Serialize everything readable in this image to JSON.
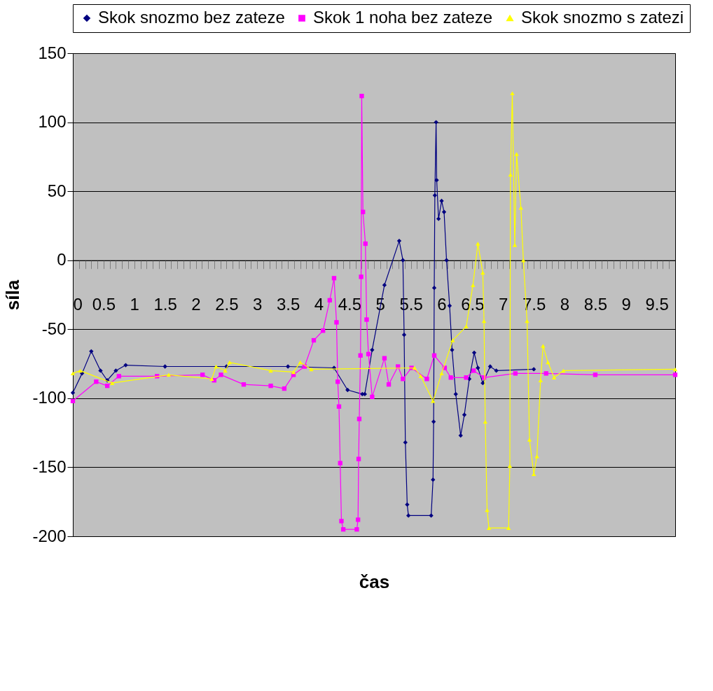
{
  "chart_data": {
    "type": "line",
    "xlabel": "čas",
    "ylabel": "síla",
    "legend": "top",
    "grid": "y",
    "xlim": [
      0,
      9.8
    ],
    "ylim": [
      -200,
      150
    ],
    "yticks": [
      -200,
      -150,
      -100,
      -50,
      0,
      50,
      100,
      150
    ],
    "xticks": [
      0,
      {
        "value": 0.1,
        "label": null
      },
      {
        "value": 0.2,
        "label": null
      },
      {
        "value": 0.3,
        "label": null
      },
      {
        "value": 0.4,
        "label": null
      },
      0.5,
      {
        "value": 0.6,
        "label": null
      },
      {
        "value": 0.7,
        "label": null
      },
      {
        "value": 0.8,
        "label": null
      },
      {
        "value": 0.9,
        "label": null
      },
      1,
      {
        "value": 1.1,
        "label": null
      },
      {
        "value": 1.2,
        "label": null
      },
      {
        "value": 1.3,
        "label": null
      },
      {
        "value": 1.4,
        "label": null
      },
      1.5,
      {
        "value": 1.6,
        "label": null
      },
      {
        "value": 1.7,
        "label": null
      },
      {
        "value": 1.8,
        "label": null
      },
      {
        "value": 1.9,
        "label": null
      },
      2,
      {
        "value": 2.1,
        "label": null
      },
      {
        "value": 2.2,
        "label": null
      },
      {
        "value": 2.3,
        "label": null
      },
      {
        "value": 2.4,
        "label": null
      },
      2.5,
      {
        "value": 2.6,
        "label": null
      },
      {
        "value": 2.7,
        "label": null
      },
      {
        "value": 2.8,
        "label": null
      },
      {
        "value": 2.9,
        "label": null
      },
      3,
      {
        "value": 3.1,
        "label": null
      },
      {
        "value": 3.2,
        "label": null
      },
      {
        "value": 3.3,
        "label": null
      },
      {
        "value": 3.4,
        "label": null
      },
      3.5,
      {
        "value": 3.6,
        "label": null
      },
      {
        "value": 3.7,
        "label": null
      },
      {
        "value": 3.8,
        "label": null
      },
      {
        "value": 3.9,
        "label": null
      },
      4,
      {
        "value": 4.1,
        "label": null
      },
      {
        "value": 4.2,
        "label": null
      },
      {
        "value": 4.3,
        "label": null
      },
      {
        "value": 4.4,
        "label": null
      },
      4.5,
      {
        "value": 4.6,
        "label": null
      },
      {
        "value": 4.7,
        "label": null
      },
      {
        "value": 4.8,
        "label": null
      },
      {
        "value": 4.9,
        "label": null
      },
      5,
      {
        "value": 5.1,
        "label": null
      },
      {
        "value": 5.2,
        "label": null
      },
      {
        "value": 5.3,
        "label": null
      },
      {
        "value": 5.4,
        "label": null
      },
      5.5,
      {
        "value": 5.6,
        "label": null
      },
      {
        "value": 5.7,
        "label": null
      },
      {
        "value": 5.8,
        "label": null
      },
      {
        "value": 5.9,
        "label": null
      },
      6,
      {
        "value": 6.1,
        "label": null
      },
      {
        "value": 6.2,
        "label": null
      },
      {
        "value": 6.3,
        "label": null
      },
      {
        "value": 6.4,
        "label": null
      },
      6.5,
      {
        "value": 6.6,
        "label": null
      },
      {
        "value": 6.7,
        "label": null
      },
      {
        "value": 6.8,
        "label": null
      },
      {
        "value": 6.9,
        "label": null
      },
      7,
      {
        "value": 7.1,
        "label": null
      },
      {
        "value": 7.2,
        "label": null
      },
      {
        "value": 7.3,
        "label": null
      },
      {
        "value": 7.4,
        "label": null
      },
      7.5,
      {
        "value": 7.6,
        "label": null
      },
      {
        "value": 7.7,
        "label": null
      },
      {
        "value": 7.8,
        "label": null
      },
      {
        "value": 7.9,
        "label": null
      },
      8,
      {
        "value": 8.1,
        "label": null
      },
      {
        "value": 8.2,
        "label": null
      },
      {
        "value": 8.3,
        "label": null
      },
      {
        "value": 8.4,
        "label": null
      },
      8.5,
      {
        "value": 8.6,
        "label": null
      },
      {
        "value": 8.7,
        "label": null
      },
      {
        "value": 8.8,
        "label": null
      },
      {
        "value": 8.9,
        "label": null
      },
      9,
      {
        "value": 9.1,
        "label": null
      },
      {
        "value": 9.2,
        "label": null
      },
      {
        "value": 9.3,
        "label": null
      },
      {
        "value": 9.4,
        "label": null
      },
      9.5,
      {
        "value": 9.6,
        "label": null
      },
      {
        "value": 9.7,
        "label": null
      }
    ],
    "series": [
      {
        "name": "Skok snozmo bez zateze",
        "color": "#000080",
        "marker": "diamond",
        "line_style": "solid",
        "x": [
          0,
          0.15,
          0.3,
          0.45,
          0.56,
          0.7,
          0.86,
          1.5,
          2.5,
          3.5,
          4.25,
          4.47,
          4.71,
          4.75,
          4.87,
          5.07,
          5.31,
          5.37,
          5.39,
          5.41,
          5.44,
          5.46,
          5.83,
          5.86,
          5.87,
          5.88,
          5.89,
          5.91,
          5.92,
          5.95,
          6.0,
          6.04,
          6.08,
          6.13,
          6.17,
          6.23,
          6.31,
          6.37,
          6.45,
          6.53,
          6.59,
          6.67,
          6.79,
          6.89,
          7.5
        ],
        "values": [
          -96,
          -82,
          -66,
          -80,
          -87,
          -80,
          -76,
          -77,
          -77,
          -77,
          -78,
          -94,
          -97,
          -97,
          -65,
          -18,
          14,
          0,
          -54,
          -132,
          -177,
          -185,
          -185,
          -159,
          -117,
          -20,
          47,
          100,
          58,
          30,
          43,
          35,
          0,
          -33,
          -65,
          -97,
          -127,
          -112,
          -86,
          -67,
          -78,
          -89,
          -77,
          -80,
          -79
        ]
      },
      {
        "name": "Skok 1 noha bez zateze",
        "color": "#ff00ff",
        "marker": "square",
        "line_style": "solid",
        "x": [
          0,
          0.38,
          0.56,
          0.75,
          1.37,
          2.11,
          2.3,
          2.41,
          2.78,
          3.22,
          3.44,
          3.59,
          3.77,
          3.92,
          4.07,
          4.18,
          4.25,
          4.29,
          4.31,
          4.33,
          4.35,
          4.37,
          4.4,
          4.62,
          4.64,
          4.65,
          4.66,
          4.68,
          4.69,
          4.7,
          4.72,
          4.76,
          4.78,
          4.81,
          4.87,
          5.07,
          5.14,
          5.29,
          5.37,
          5.51,
          5.76,
          5.88,
          6.05,
          6.15,
          6.4,
          6.52,
          6.69,
          7.2,
          7.7,
          8.5,
          9.8
        ],
        "values": [
          -102,
          -88,
          -91,
          -84,
          -84,
          -83,
          -87,
          -83,
          -90,
          -91,
          -93,
          -83,
          -77,
          -58,
          -51,
          -29,
          -13,
          -45,
          -88,
          -106,
          -147,
          -189,
          -195,
          -195,
          -188,
          -144,
          -115,
          -69,
          -12,
          119,
          35,
          12,
          -43,
          -68,
          -99,
          -71,
          -90,
          -77,
          -86,
          -78,
          -86,
          -69,
          -78,
          -85,
          -85,
          -80,
          -85,
          -82,
          -82,
          -83,
          -83
        ]
      },
      {
        "name": "Skok snozmo s zatezi",
        "color": "#ffff00",
        "marker": "triangle",
        "line_style": "solid",
        "x": [
          0,
          0.12,
          0.64,
          1.56,
          2.26,
          2.33,
          2.48,
          2.55,
          3.22,
          3.59,
          3.7,
          3.88,
          5.56,
          5.66,
          5.86,
          6.0,
          6.18,
          6.4,
          6.51,
          6.59,
          6.67,
          6.69,
          6.71,
          6.74,
          6.77,
          7.09,
          7.11,
          7.12,
          7.15,
          7.19,
          7.22,
          7.29,
          7.33,
          7.39,
          7.43,
          7.5,
          7.55,
          7.61,
          7.65,
          7.73,
          7.83,
          7.98,
          9.8
        ],
        "values": [
          -82,
          -80,
          -89,
          -83,
          -86,
          -77,
          -80,
          -74,
          -80,
          -81,
          -74,
          -79,
          -78,
          -84,
          -102,
          -82,
          -58,
          -48,
          -18,
          12,
          -9,
          -44,
          -117,
          -181,
          -194,
          -194,
          -149,
          62,
          121,
          11,
          77,
          38,
          0,
          -44,
          -130,
          -155,
          -142,
          -87,
          -62,
          -74,
          -85,
          -80,
          -79
        ]
      }
    ]
  }
}
